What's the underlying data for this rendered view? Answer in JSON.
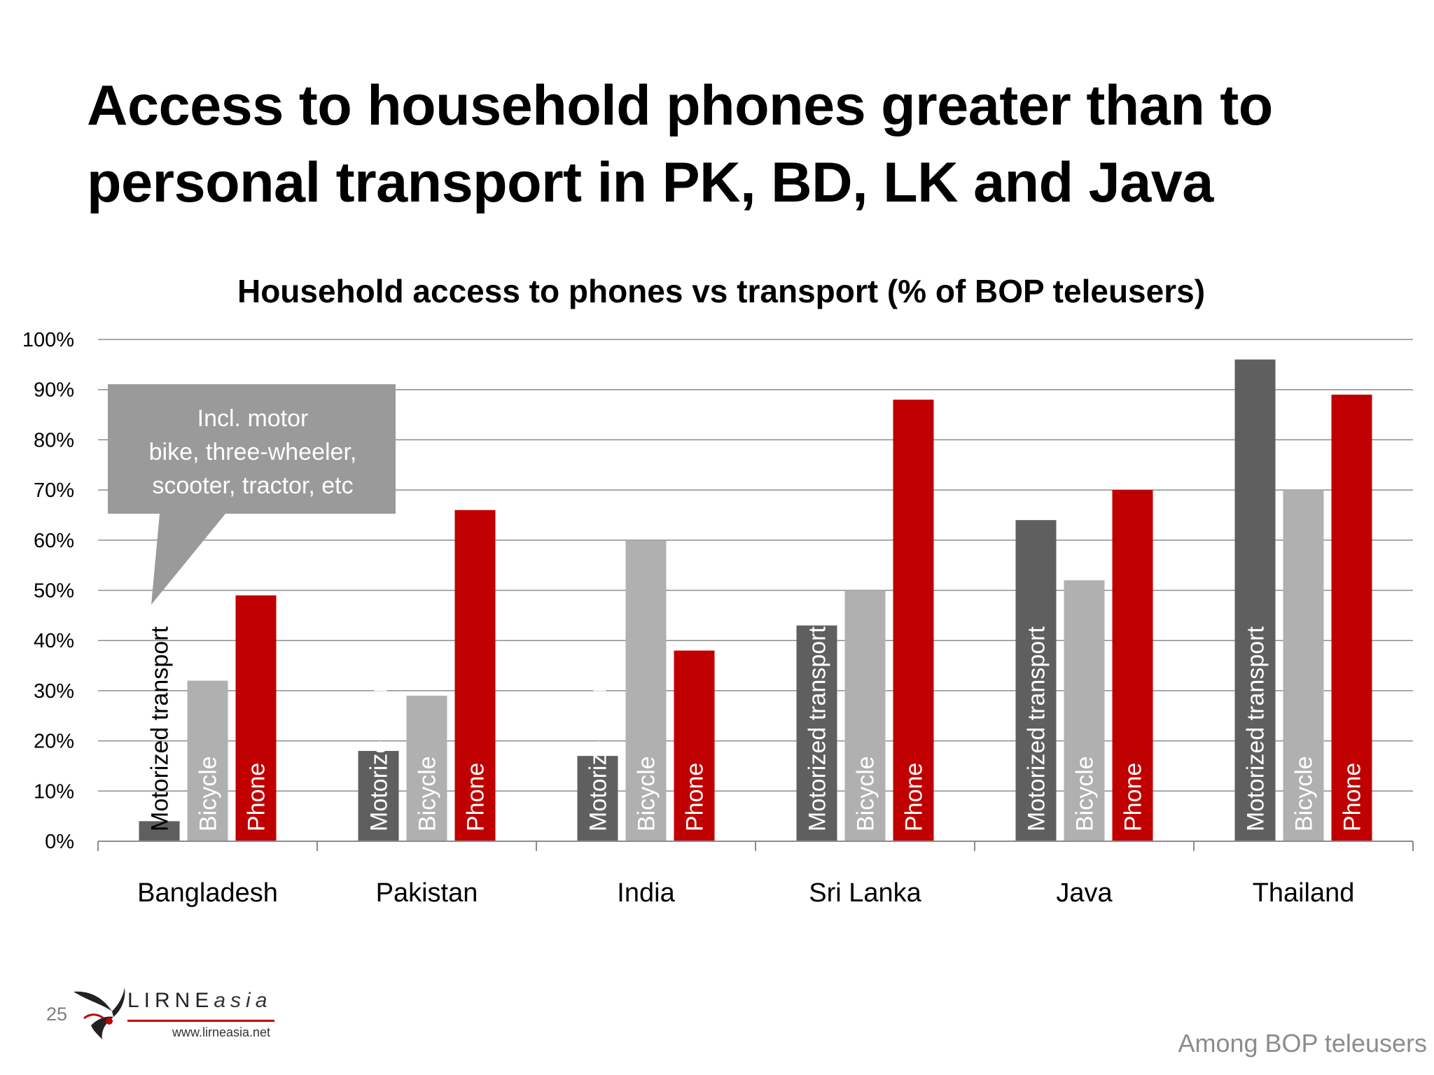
{
  "slide": {
    "title": "Access to household phones greater than to personal transport in PK, BD, LK and Java",
    "slide_number": "25",
    "footer_note": "Among BOP teleusers",
    "logo": {
      "name": "LIRNE",
      "suffix": "asia",
      "url": "www.lirneasia.net"
    }
  },
  "callout": {
    "lines": [
      "Incl. motor",
      "bike, three-wheeler,",
      "scooter, tractor,  etc"
    ]
  },
  "chart_data": {
    "type": "bar",
    "title": "Household access  to phones vs transport (% of BOP teleusers)",
    "xlabel": "",
    "ylabel": "",
    "categories": [
      "Bangladesh",
      "Pakistan",
      "India",
      "Sri Lanka",
      "Java",
      "Thailand"
    ],
    "series": [
      {
        "name": "Motorized transport",
        "color": "#5f5f5f",
        "label_color": "#000000",
        "values": [
          4,
          18,
          17,
          43,
          64,
          96
        ]
      },
      {
        "name": "Bicycle",
        "color": "#b0b0b0",
        "label_color": "#ffffff",
        "values": [
          32,
          29,
          60,
          50,
          52,
          70
        ]
      },
      {
        "name": "Phone",
        "color": "#c00000",
        "label_color": "#ffffff",
        "values": [
          49,
          66,
          38,
          88,
          70,
          89
        ]
      }
    ],
    "ylim": [
      0,
      100
    ],
    "yticks": [
      "0%",
      "10%",
      "20%",
      "30%",
      "40%",
      "50%",
      "60%",
      "70%",
      "80%",
      "90%",
      "100%"
    ],
    "grid": true,
    "legend": "none",
    "label_colors_by_category": {
      "Motorized transport": [
        "#000000",
        "#ffffff",
        "#ffffff",
        "#ffffff",
        "#ffffff",
        "#ffffff"
      ]
    }
  }
}
